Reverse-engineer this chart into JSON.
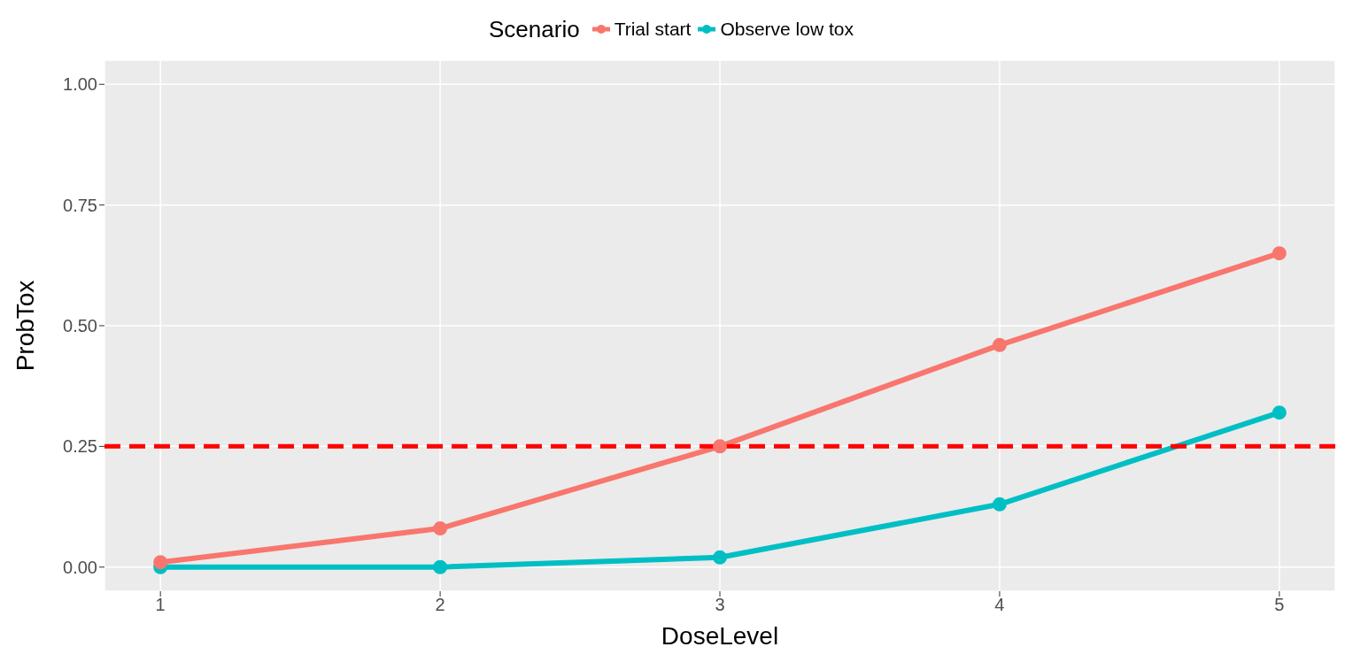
{
  "chart_data": {
    "type": "line",
    "xlabel": "DoseLevel",
    "ylabel": "ProbTox",
    "legend_title": "Scenario",
    "legend": "top",
    "x": [
      1,
      2,
      3,
      4,
      5
    ],
    "series": [
      {
        "name": "Trial start",
        "color": "#f8766d",
        "values": [
          0.01,
          0.08,
          0.25,
          0.46,
          0.65
        ]
      },
      {
        "name": "Observe low tox",
        "color": "#00bfc4",
        "values": [
          0,
          0,
          0.02,
          0.13,
          0.32
        ]
      }
    ],
    "xlim": [
      0.8,
      5.2
    ],
    "xticks": [
      1,
      2,
      3,
      4,
      5
    ],
    "ylim": [
      -0.05,
      1.05
    ],
    "yticks": [
      {
        "value": 0,
        "label": "0.00"
      },
      {
        "value": 0.25,
        "label": "0.25"
      },
      {
        "value": 0.5,
        "label": "0.50"
      },
      {
        "value": 0.75,
        "label": "0.75"
      },
      {
        "value": 1,
        "label": "1.00"
      }
    ],
    "ref_lines": [
      {
        "axis": "y",
        "value": 0.25,
        "label": null,
        "color": "#ff0000",
        "line_style": "dashed"
      }
    ],
    "grid": true,
    "marker": "circle",
    "line_style": "solid"
  }
}
